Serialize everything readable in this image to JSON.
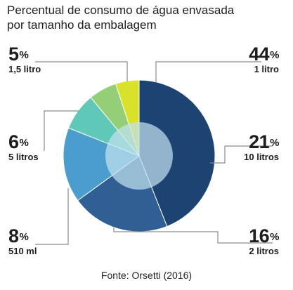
{
  "title_line1": "Percentual de consumo de água envasada",
  "title_line2": "por tamanho da embalagem",
  "source": "Fonte: Orsetti (2016)",
  "chart_data": {
    "type": "pie",
    "title": "Percentual de consumo de água envasada por tamanho da embalagem",
    "unit": "%",
    "slices": [
      {
        "label": "1 litro",
        "value": 44,
        "color": "#1c4372"
      },
      {
        "label": "10 litros",
        "value": 21,
        "color": "#2f5f95"
      },
      {
        "label": "2 litros",
        "value": 16,
        "color": "#4a9dcc"
      },
      {
        "label": "510 ml",
        "value": 8,
        "color": "#5fc8b6"
      },
      {
        "label": "5 litros",
        "value": 6,
        "color": "#94cf77"
      },
      {
        "label": "1,5 litro",
        "value": 5,
        "color": "#d9e12a"
      }
    ],
    "other_color": "#cfe0de",
    "center_color": "#c2e0ee"
  },
  "labels": {
    "l44": {
      "pct": "44",
      "sym": "%",
      "cat": "1 litro"
    },
    "l21": {
      "pct": "21",
      "sym": "%",
      "cat": "10 litros"
    },
    "l16": {
      "pct": "16",
      "sym": "%",
      "cat": "2 litros"
    },
    "l8": {
      "pct": "8",
      "sym": "%",
      "cat": "510 ml"
    },
    "l6": {
      "pct": "6",
      "sym": "%",
      "cat": "5 litros"
    },
    "l5": {
      "pct": "5",
      "sym": "%",
      "cat": "1,5 litro"
    }
  }
}
